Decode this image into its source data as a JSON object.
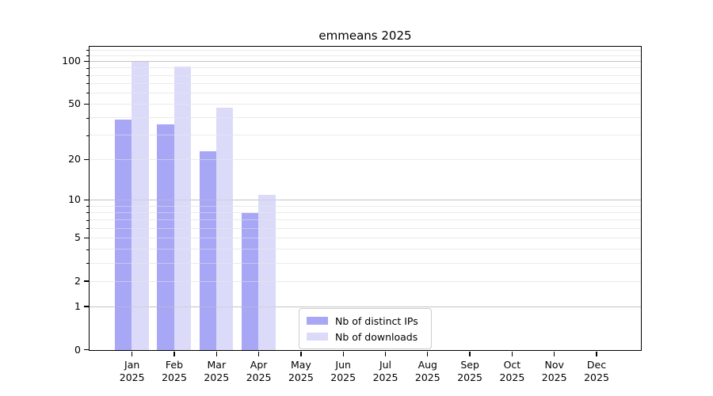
{
  "chart_data": {
    "type": "bar",
    "title": "emmeans 2025",
    "categories": [
      "Jan 2025",
      "Feb 2025",
      "Mar 2025",
      "Apr 2025",
      "May 2025",
      "Jun 2025",
      "Jul 2025",
      "Aug 2025",
      "Sep 2025",
      "Oct 2025",
      "Nov 2025",
      "Dec 2025"
    ],
    "series": [
      {
        "name": "Nb of distinct IPs",
        "color": "#a7a7f5",
        "values": [
          39,
          36,
          23,
          8,
          0,
          0,
          0,
          0,
          0,
          0,
          0,
          0
        ]
      },
      {
        "name": "Nb of downloads",
        "color": "#dbdbf9",
        "values": [
          100,
          92,
          47,
          11,
          0,
          0,
          0,
          0,
          0,
          0,
          0,
          0
        ]
      }
    ],
    "xlabel": "",
    "ylabel": "",
    "yscale": "log1p",
    "ylim": [
      0,
      126
    ],
    "yticks": [
      0,
      1,
      2,
      5,
      10,
      20,
      50,
      100
    ],
    "major_gridlines": [
      1,
      10,
      100
    ],
    "minor_gridlines": [
      2,
      3,
      4,
      5,
      6,
      7,
      8,
      9,
      20,
      30,
      40,
      50,
      60,
      70,
      80,
      90,
      110,
      120
    ],
    "grid": true,
    "legend": {
      "position": "lower center inside",
      "items": [
        "Nb of distinct IPs",
        "Nb of downloads"
      ]
    }
  }
}
